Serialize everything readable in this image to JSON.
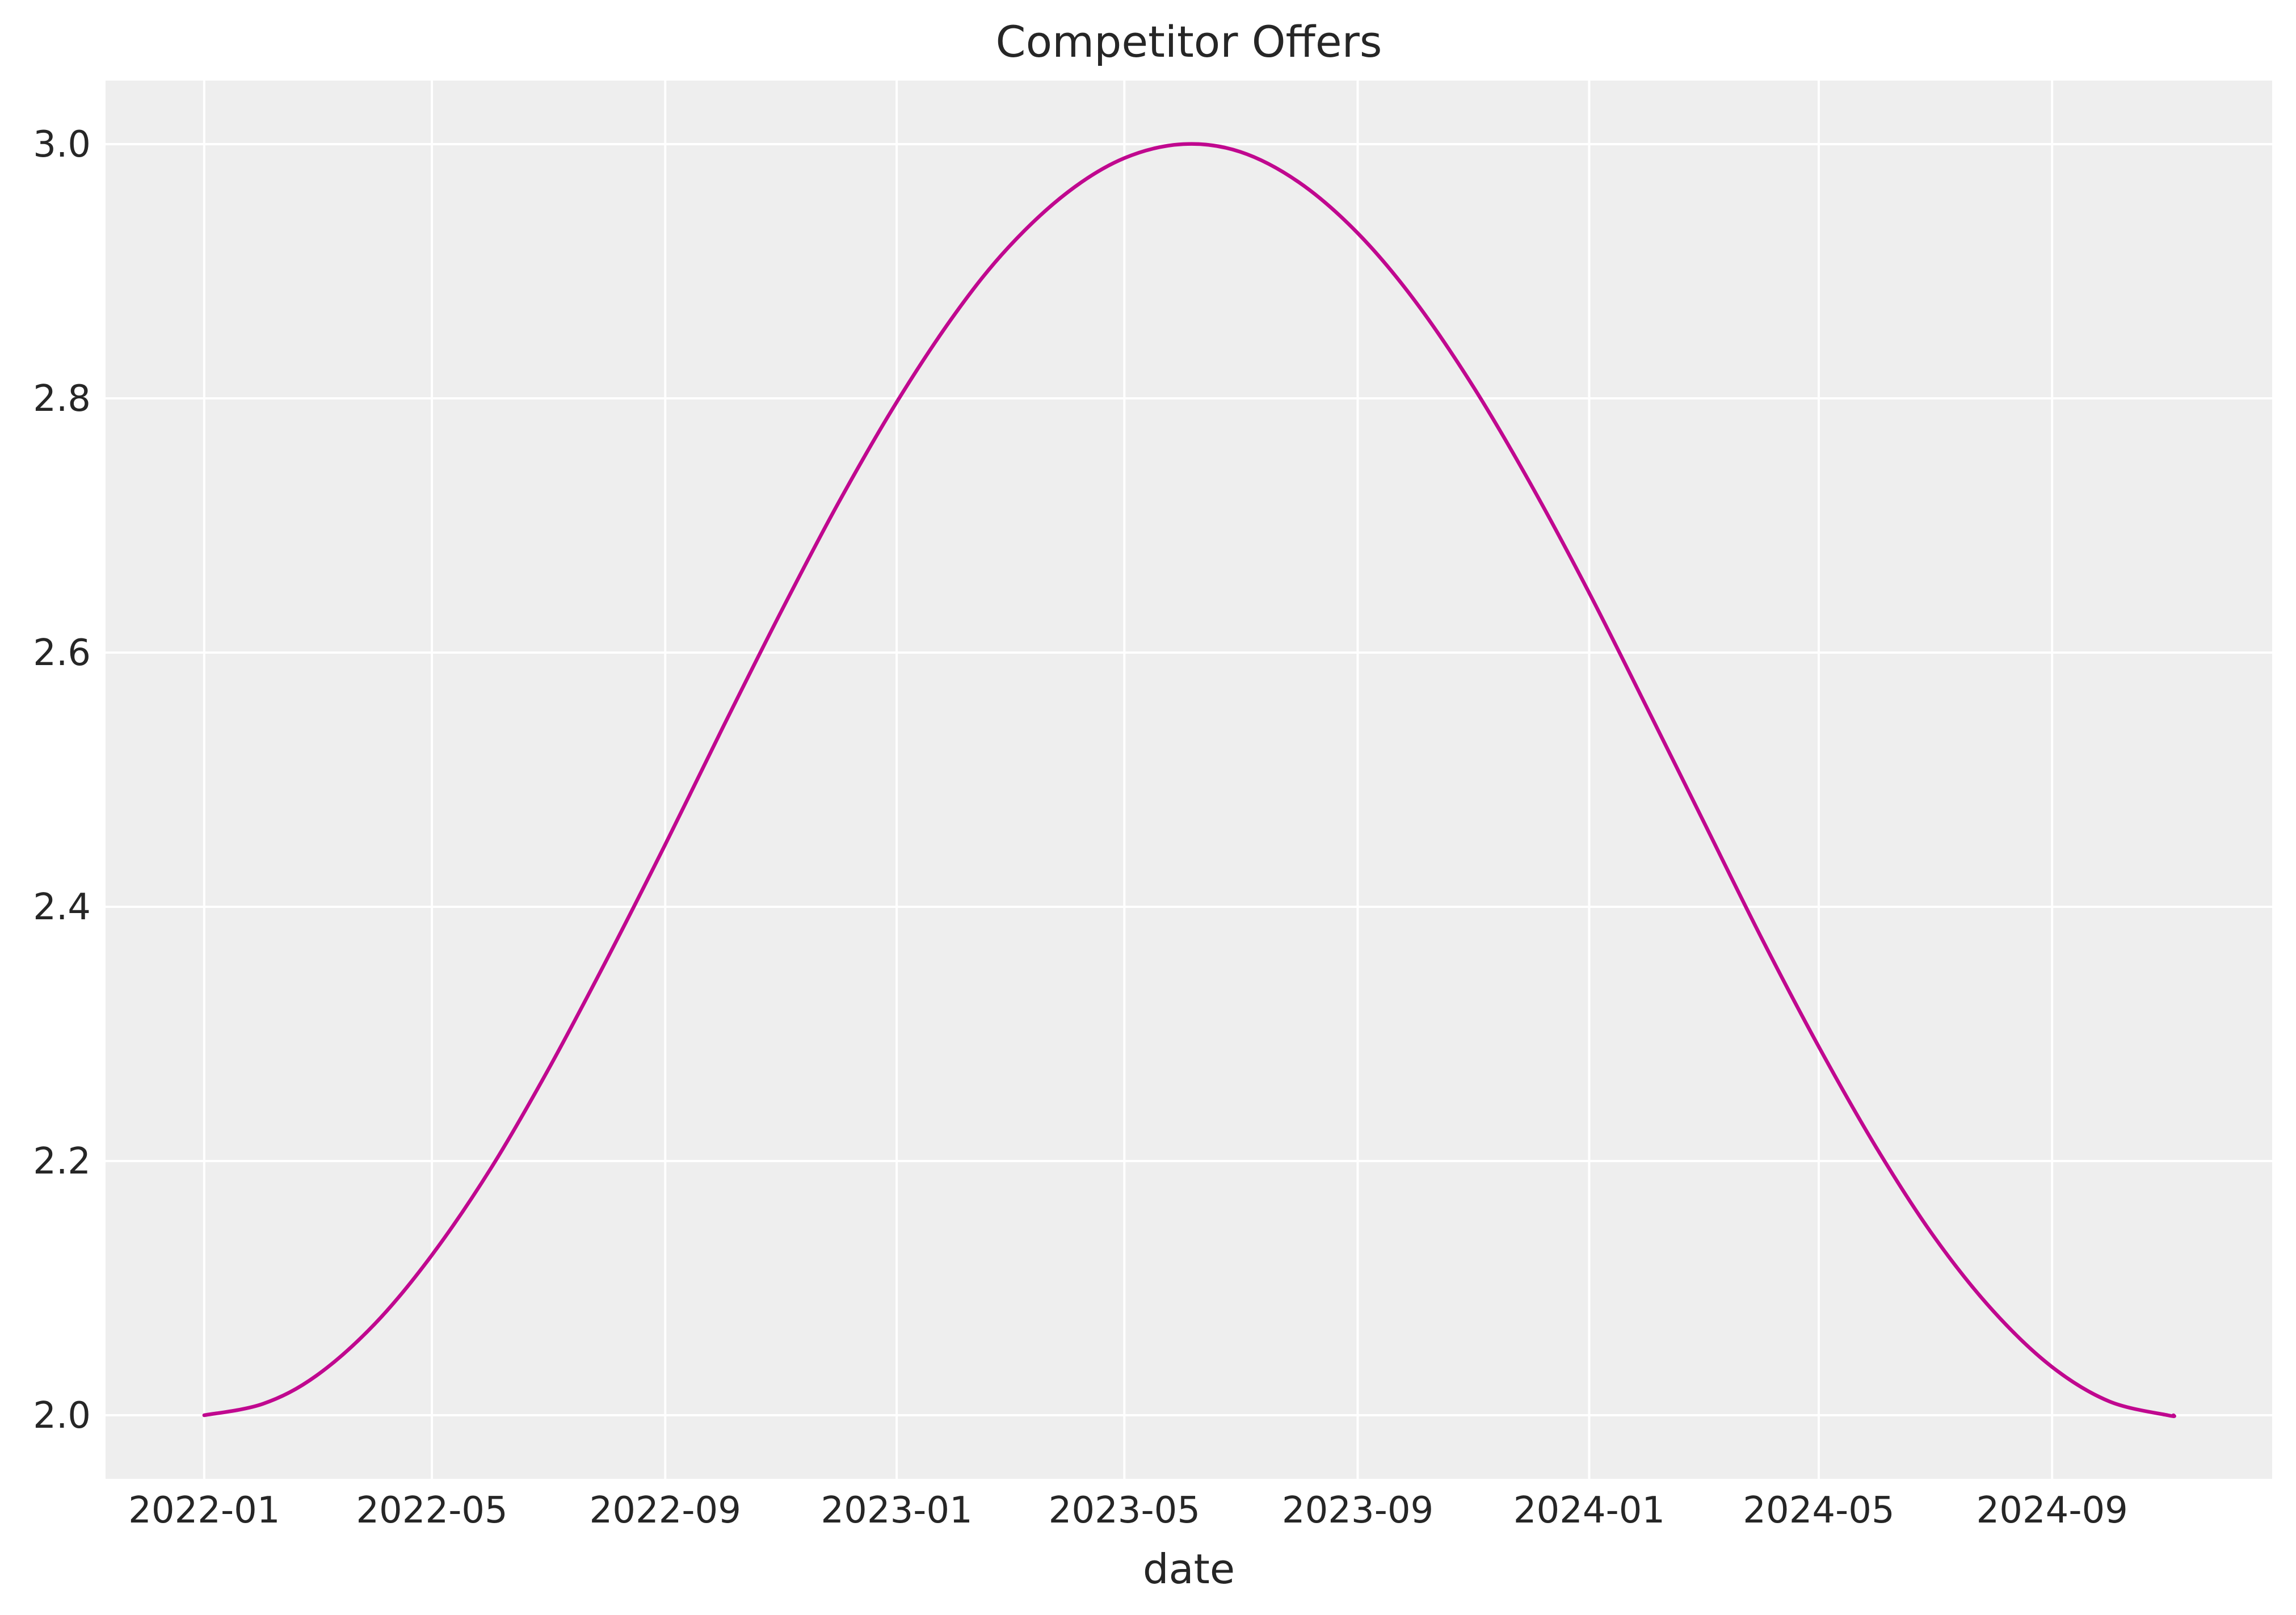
{
  "chart_data": {
    "type": "line",
    "title": "Competitor Offers",
    "xlabel": "date",
    "ylabel": "",
    "x_type": "date",
    "xlim": [
      "2021-11-10",
      "2024-12-26"
    ],
    "ylim": [
      1.95,
      3.05
    ],
    "grid": true,
    "background_color": "#eeeeee",
    "grid_color": "#ffffff",
    "x_ticks": [
      "2022-01",
      "2022-05",
      "2022-09",
      "2023-01",
      "2023-05",
      "2023-09",
      "2024-01",
      "2024-05",
      "2024-09"
    ],
    "y_ticks": [
      "2.0",
      "2.2",
      "2.4",
      "2.6",
      "2.8",
      "3.0"
    ],
    "series": [
      {
        "color": "#c0088f",
        "x": [
          "2022-01-01",
          "2022-02-01",
          "2022-03-01",
          "2022-04-01",
          "2022-05-01",
          "2022-06-01",
          "2022-07-01",
          "2022-08-01",
          "2022-09-01",
          "2022-10-01",
          "2022-11-01",
          "2022-12-01",
          "2023-01-01",
          "2023-02-01",
          "2023-03-01",
          "2023-04-01",
          "2023-05-01",
          "2023-06-01",
          "2023-07-01",
          "2023-08-01",
          "2023-09-01",
          "2023-10-01",
          "2023-11-01",
          "2023-12-01",
          "2024-01-01",
          "2024-02-01",
          "2024-03-01",
          "2024-04-01",
          "2024-05-01",
          "2024-06-01",
          "2024-07-01",
          "2024-08-01",
          "2024-09-01",
          "2024-10-01",
          "2024-11-01",
          "2024-11-04"
        ],
        "y": [
          2.0,
          2.009,
          2.031,
          2.072,
          2.126,
          2.194,
          2.271,
          2.358,
          2.449,
          2.54,
          2.632,
          2.717,
          2.797,
          2.867,
          2.919,
          2.962,
          2.989,
          3.0,
          2.994,
          2.97,
          2.93,
          2.877,
          2.809,
          2.733,
          2.647,
          2.555,
          2.468,
          2.375,
          2.29,
          2.209,
          2.14,
          2.082,
          2.038,
          2.011,
          2.0,
          2.0
        ]
      }
    ]
  }
}
